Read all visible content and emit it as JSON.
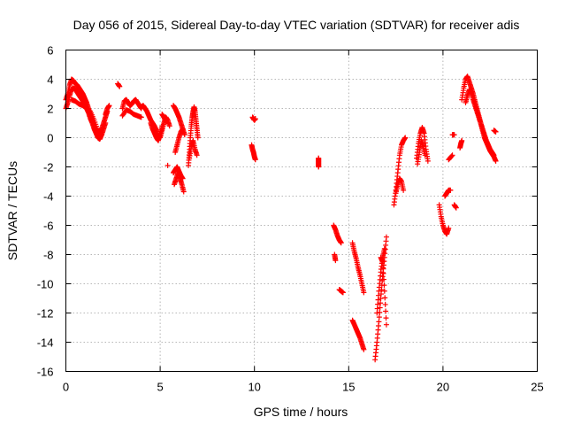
{
  "chart_data": {
    "type": "scatter",
    "title": "Day 056 of 2015, Sidereal Day-to-day VTEC variation (SDTVAR) for receiver adis",
    "xlabel": "GPS time / hours",
    "ylabel": "SDTVAR / TECUs",
    "xlim": [
      0,
      25
    ],
    "ylim": [
      -16,
      6
    ],
    "xticks": [
      "0",
      "5",
      "10",
      "15",
      "20",
      "25"
    ],
    "yticks": [
      "-16",
      "-14",
      "-12",
      "-10",
      "-8",
      "-6",
      "-4",
      "-2",
      "0",
      "2",
      "4",
      "6"
    ],
    "grid": true,
    "marker": "+",
    "series": [
      {
        "name": "SDTVAR",
        "color": "#ff0000",
        "segments": [
          {
            "x": [
              0.0,
              0.1,
              0.2,
              0.3,
              0.4,
              0.5,
              0.6,
              0.7,
              0.8,
              0.9,
              1.0,
              1.1,
              1.2,
              1.3,
              1.4,
              1.5,
              1.6,
              1.7,
              1.8,
              1.9,
              2.0,
              2.1,
              2.2
            ],
            "y": [
              2.6,
              3.0,
              3.6,
              4.0,
              3.9,
              3.7,
              3.6,
              3.4,
              3.2,
              3.0,
              2.7,
              2.4,
              2.0,
              1.6,
              1.2,
              0.8,
              0.4,
              0.2,
              0.3,
              0.6,
              1.0,
              1.4,
              1.8
            ]
          },
          {
            "x": [
              0.0,
              0.1,
              0.2,
              0.3,
              0.4,
              0.5,
              0.6,
              0.7,
              0.8,
              0.9,
              1.0,
              1.1,
              1.2,
              1.3,
              1.4,
              1.5,
              1.6,
              1.7,
              1.8,
              1.9,
              2.0,
              2.1
            ],
            "y": [
              2.0,
              2.4,
              2.9,
              3.3,
              3.4,
              3.3,
              3.1,
              2.9,
              2.7,
              2.5,
              2.3,
              2.0,
              1.7,
              1.3,
              1.0,
              0.6,
              0.3,
              0.0,
              -0.1,
              0.2,
              0.6,
              1.0
            ]
          },
          {
            "x": [
              0.3,
              0.5,
              0.7,
              0.9,
              1.1,
              1.3,
              1.5,
              1.7,
              1.9
            ],
            "y": [
              2.6,
              2.5,
              2.3,
              2.2,
              2.0,
              1.8,
              1.2,
              0.5,
              0.2
            ]
          },
          {
            "x": [
              2.1,
              2.2,
              2.3
            ],
            "y": [
              1.6,
              2.0,
              2.2
            ]
          },
          {
            "x": [
              2.75,
              2.85
            ],
            "y": [
              3.7,
              3.5
            ]
          },
          {
            "x": [
              3.0,
              3.1,
              3.2,
              3.3,
              3.4,
              3.5,
              3.6,
              3.7,
              3.8,
              3.9,
              4.0
            ],
            "y": [
              2.0,
              2.5,
              2.6,
              2.4,
              2.2,
              2.3,
              2.5,
              2.6,
              2.4,
              2.2,
              2.0
            ]
          },
          {
            "x": [
              3.0,
              3.2,
              3.4,
              3.6,
              3.8,
              4.0
            ],
            "y": [
              1.5,
              1.9,
              1.8,
              1.6,
              1.5,
              1.4
            ]
          },
          {
            "x": [
              4.0,
              4.1,
              4.2,
              4.3,
              4.4,
              4.5,
              4.6,
              4.7,
              4.8,
              4.9,
              5.0,
              5.1,
              5.2,
              5.3,
              5.4,
              5.5
            ],
            "y": [
              2.1,
              2.2,
              2.0,
              1.8,
              1.5,
              1.2,
              1.0,
              0.8,
              0.5,
              0.1,
              0.0,
              0.5,
              1.0,
              1.4,
              1.2,
              0.8
            ]
          },
          {
            "x": [
              4.5,
              4.6,
              4.7,
              4.8,
              4.9,
              5.0,
              5.1
            ],
            "y": [
              1.0,
              0.6,
              0.3,
              0.0,
              -0.2,
              0.2,
              0.8
            ]
          },
          {
            "x": [
              5.1,
              5.2,
              5.3
            ],
            "y": [
              1.6,
              1.4,
              1.1
            ]
          },
          {
            "x": [
              5.4
            ],
            "y": [
              -1.9
            ]
          },
          {
            "x": [
              5.7,
              5.8,
              5.9,
              6.0,
              6.1,
              6.2
            ],
            "y": [
              2.2,
              2.0,
              1.7,
              1.4,
              1.0,
              0.6
            ]
          },
          {
            "x": [
              5.8,
              5.9,
              6.0,
              6.1,
              6.2,
              6.3
            ],
            "y": [
              -1.0,
              -0.5,
              0.0,
              0.4,
              0.6,
              0.2
            ]
          },
          {
            "x": [
              5.75,
              5.85,
              5.95,
              6.05,
              6.15,
              6.25
            ],
            "y": [
              -3.2,
              -2.8,
              -2.4,
              -2.8,
              -3.2,
              -3.7
            ]
          },
          {
            "x": [
              5.7,
              5.8,
              5.9,
              6.0,
              6.1,
              6.2
            ],
            "y": [
              -2.4,
              -2.2,
              -2.0,
              -2.3,
              -2.6,
              -2.8
            ]
          },
          {
            "x": [
              6.5,
              6.55,
              6.6,
              6.65,
              6.7,
              6.75,
              6.8,
              6.85,
              6.9,
              6.95,
              7.0
            ],
            "y": [
              -1.9,
              -1.0,
              0.0,
              0.8,
              1.4,
              1.8,
              2.1,
              1.8,
              1.2,
              0.6,
              0.0
            ]
          },
          {
            "x": [
              6.55,
              6.65,
              6.75,
              6.85,
              6.95
            ],
            "y": [
              -1.4,
              -0.6,
              -0.2,
              -0.8,
              -1.2
            ]
          },
          {
            "x": [
              9.9,
              9.95,
              10.0,
              10.05
            ],
            "y": [
              1.4,
              1.3,
              1.2,
              1.3
            ]
          },
          {
            "x": [
              9.85,
              9.9,
              9.95,
              10.0,
              10.05
            ],
            "y": [
              -0.5,
              -0.8,
              -1.0,
              -1.3,
              -1.5
            ]
          },
          {
            "x": [
              13.4,
              13.4,
              13.4,
              13.4
            ],
            "y": [
              -1.4,
              -1.6,
              -1.8,
              -2.0
            ]
          },
          {
            "x": [
              14.2,
              14.3,
              14.4,
              14.5,
              14.6
            ],
            "y": [
              -6.0,
              -6.3,
              -6.7,
              -7.0,
              -7.2
            ]
          },
          {
            "x": [
              14.25,
              14.3
            ],
            "y": [
              -8.0,
              -8.4
            ]
          },
          {
            "x": [
              14.5,
              14.6,
              14.7
            ],
            "y": [
              -10.4,
              -10.5,
              -10.6
            ]
          },
          {
            "x": [
              15.2,
              15.3,
              15.4,
              15.5,
              15.6,
              15.7,
              15.8
            ],
            "y": [
              -7.2,
              -7.8,
              -8.3,
              -8.9,
              -9.4,
              -10.0,
              -10.6
            ]
          },
          {
            "x": [
              15.2,
              15.3,
              15.4,
              15.5,
              15.6,
              15.7,
              15.8
            ],
            "y": [
              -12.5,
              -12.8,
              -13.1,
              -13.4,
              -13.7,
              -14.1,
              -14.5
            ]
          },
          {
            "x": [
              16.4,
              16.5,
              16.6,
              16.7,
              16.8,
              16.9,
              17.0
            ],
            "y": [
              -15.2,
              -14.0,
              -12.6,
              -11.0,
              -9.5,
              -8.2,
              -6.8
            ]
          },
          {
            "x": [
              16.5,
              16.6,
              16.7,
              16.8,
              16.9
            ],
            "y": [
              -12.0,
              -10.5,
              -9.2,
              -8.2,
              -7.6
            ]
          },
          {
            "x": [
              16.7,
              16.8,
              16.9,
              17.0
            ],
            "y": [
              -8.2,
              -8.5,
              -10.5,
              -12.8
            ]
          },
          {
            "x": [
              17.4,
              17.5,
              17.6,
              17.7,
              17.8,
              17.9,
              18.0
            ],
            "y": [
              -4.6,
              -3.6,
              -2.4,
              -1.2,
              -0.5,
              -0.2,
              0.0
            ]
          },
          {
            "x": [
              17.5,
              17.6,
              17.7,
              17.8,
              17.9
            ],
            "y": [
              -3.8,
              -3.2,
              -2.8,
              -3.0,
              -3.6
            ]
          },
          {
            "x": [
              18.6,
              18.7,
              18.8,
              18.9,
              19.0,
              19.1,
              19.2
            ],
            "y": [
              -1.4,
              -0.4,
              0.3,
              0.7,
              0.3,
              -0.8,
              -1.6
            ]
          },
          {
            "x": [
              18.65,
              18.75,
              18.85,
              18.95,
              19.05
            ],
            "y": [
              -1.8,
              -1.0,
              -0.2,
              -0.6,
              -1.2
            ]
          },
          {
            "x": [
              19.8,
              19.9,
              20.0,
              20.1,
              20.2,
              20.3
            ],
            "y": [
              -4.6,
              -5.4,
              -6.0,
              -6.4,
              -6.6,
              -6.2
            ]
          },
          {
            "x": [
              20.1,
              20.2,
              20.3,
              20.4
            ],
            "y": [
              -4.0,
              -3.8,
              -3.6,
              -3.6
            ]
          },
          {
            "x": [
              20.6,
              20.7
            ],
            "y": [
              -4.6,
              -4.8
            ]
          },
          {
            "x": [
              20.3,
              20.5
            ],
            "y": [
              -1.5,
              -1.2
            ]
          },
          {
            "x": [
              20.5,
              20.6
            ],
            "y": [
              0.2,
              0.2
            ]
          },
          {
            "x": [
              20.9,
              20.95,
              21.0
            ],
            "y": [
              -0.7,
              -0.4,
              -0.2
            ]
          },
          {
            "x": [
              21.0,
              21.1,
              21.2,
              21.3,
              21.4,
              21.5,
              21.6,
              21.7,
              21.8,
              21.9,
              22.0,
              22.1,
              22.2,
              22.3,
              22.4,
              22.5,
              22.6,
              22.7,
              22.8
            ],
            "y": [
              2.6,
              3.4,
              4.0,
              4.2,
              3.8,
              3.4,
              3.0,
              2.5,
              2.0,
              1.5,
              1.0,
              0.5,
              0.0,
              -0.3,
              -0.6,
              -0.9,
              -1.1,
              -1.3,
              -1.6
            ]
          },
          {
            "x": [
              21.2,
              21.3,
              21.4,
              21.5,
              21.6,
              21.7,
              21.8,
              21.9,
              22.0,
              22.1,
              22.2,
              22.3,
              22.4,
              22.5,
              22.6,
              22.7
            ],
            "y": [
              2.4,
              2.9,
              3.3,
              3.1,
              2.6,
              2.2,
              1.8,
              1.4,
              1.0,
              0.6,
              0.2,
              -0.2,
              -0.5,
              -0.8,
              -1.0,
              -1.2
            ]
          },
          {
            "x": [
              22.7,
              22.8
            ],
            "y": [
              0.5,
              0.4
            ]
          }
        ]
      }
    ]
  }
}
